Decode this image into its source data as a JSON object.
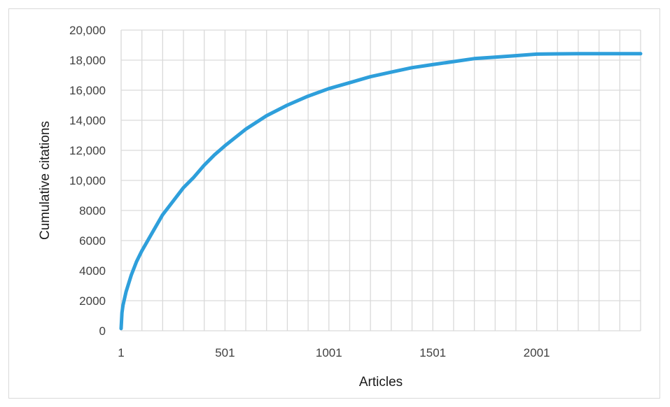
{
  "chart_data": {
    "type": "line",
    "title": "",
    "xlabel": "Articles",
    "ylabel": "Cumulative citations",
    "xlim": [
      1,
      2501
    ],
    "ylim": [
      0,
      20000
    ],
    "x_tick_labels": [
      "1",
      "501",
      "1001",
      "1501",
      "2001"
    ],
    "x_tick_values": [
      1,
      501,
      1001,
      1501,
      2001
    ],
    "x_grid_step": 100,
    "y_tick_labels": [
      "0",
      "2000",
      "4000",
      "6000",
      "8000",
      "10,000",
      "12,000",
      "14,000",
      "16,000",
      "18,000",
      "20,000"
    ],
    "y_tick_values": [
      0,
      2000,
      4000,
      6000,
      8000,
      10000,
      12000,
      14000,
      16000,
      18000,
      20000
    ],
    "grid": true,
    "legend": "none",
    "series": [
      {
        "color": "#2e9fdb",
        "x": [
          1,
          5,
          10,
          25,
          50,
          75,
          100,
          150,
          200,
          250,
          300,
          350,
          400,
          450,
          500,
          600,
          700,
          800,
          900,
          1000,
          1100,
          1200,
          1300,
          1400,
          1500,
          1600,
          1700,
          1800,
          1900,
          2000,
          2100,
          2200,
          2300,
          2400,
          2501
        ],
        "y": [
          150,
          1200,
          1700,
          2600,
          3700,
          4600,
          5300,
          6500,
          7700,
          8600,
          9500,
          10200,
          11000,
          11700,
          12300,
          13400,
          14300,
          15000,
          15600,
          16100,
          16500,
          16900,
          17200,
          17500,
          17700,
          17900,
          18100,
          18200,
          18300,
          18400,
          18420,
          18430,
          18430,
          18430,
          18430
        ]
      }
    ]
  }
}
